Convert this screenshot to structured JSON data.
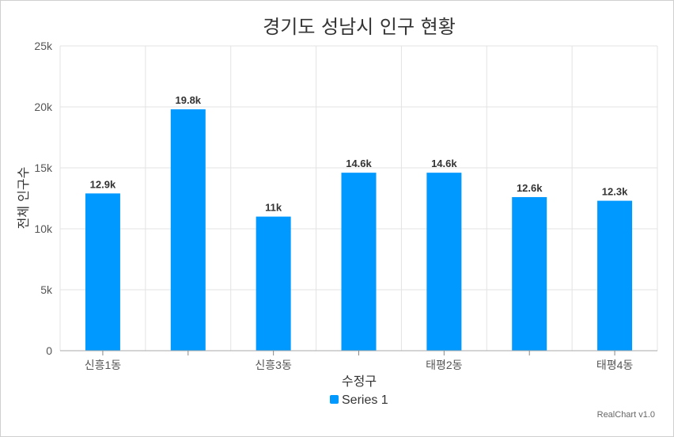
{
  "chart_data": {
    "type": "bar",
    "title": "경기도 성남시 인구 현황",
    "xlabel": "수정구",
    "ylabel": "전체 인구수",
    "categories": [
      "신흥1동",
      "",
      "신흥3동",
      "",
      "태평2동",
      "",
      "태평4동"
    ],
    "series": [
      {
        "name": "Series 1",
        "values": [
          12900,
          19800,
          11000,
          14600,
          14600,
          12600,
          12300
        ]
      }
    ],
    "data_labels": [
      "12.9k",
      "19.8k",
      "11k",
      "14.6k",
      "14.6k",
      "12.6k",
      "12.3k"
    ],
    "ylim": [
      0,
      25000
    ],
    "y_ticks": [
      0,
      5000,
      10000,
      15000,
      20000,
      25000
    ],
    "y_tick_labels": [
      "0",
      "5k",
      "10k",
      "15k",
      "20k",
      "25k"
    ],
    "grid": true,
    "legend_position": "bottom",
    "bar_color": "#0099ff"
  },
  "credit": "RealChart v1.0"
}
